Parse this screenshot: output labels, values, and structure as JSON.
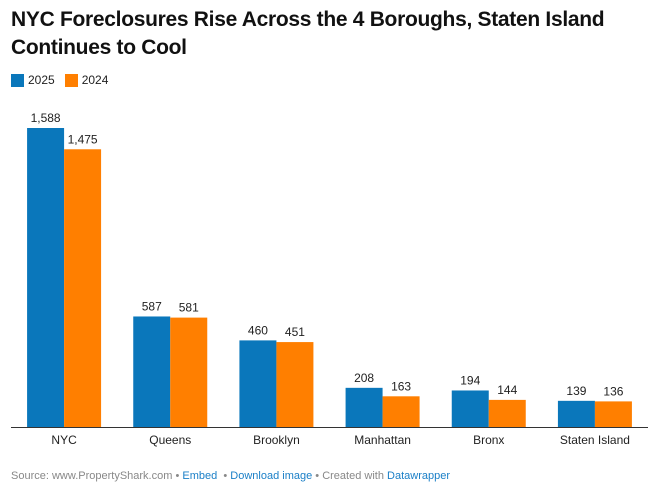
{
  "title": "NYC Foreclosures Rise Across the 4 Boroughs, Staten Island Continues to Cool",
  "chart_data": {
    "type": "bar",
    "title": "NYC Foreclosures Rise Across the 4 Boroughs, Staten Island Continues to Cool",
    "categories": [
      "NYC",
      "Queens",
      "Brooklyn",
      "Manhattan",
      "Bronx",
      "Staten Island"
    ],
    "series": [
      {
        "name": "2025",
        "color": "#0a77bb",
        "values": [
          1588,
          587,
          460,
          208,
          194,
          139
        ]
      },
      {
        "name": "2024",
        "color": "#ff7f00",
        "values": [
          1475,
          581,
          451,
          163,
          144,
          136
        ]
      }
    ],
    "xlabel": "",
    "ylabel": "",
    "ylim": [
      0,
      1588
    ],
    "grid": false,
    "legend": "top-left"
  },
  "footer": {
    "source": "Source: www.PropertyShark.com",
    "embed": "Embed",
    "download": "Download image",
    "created": "Created with",
    "datawrapper": "Datawrapper",
    "sep": "•"
  }
}
